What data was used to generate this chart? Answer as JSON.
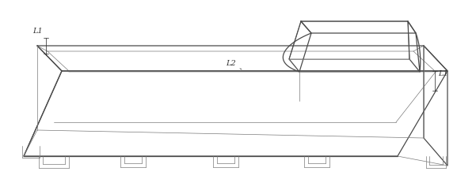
{
  "background_color": "#ffffff",
  "line_color": "#4a4a4a",
  "thin_line_color": "#7a7a7a",
  "label_color": "#333333",
  "lw_main": 0.9,
  "lw_thin": 0.5,
  "lw_label": 0.55,
  "figsize": [
    6.01,
    2.27
  ],
  "dpi": 100,
  "L1_left_label": "L1",
  "L2_label": "L2",
  "L1_right_label": "L1",
  "label_fontsize": 7.0
}
